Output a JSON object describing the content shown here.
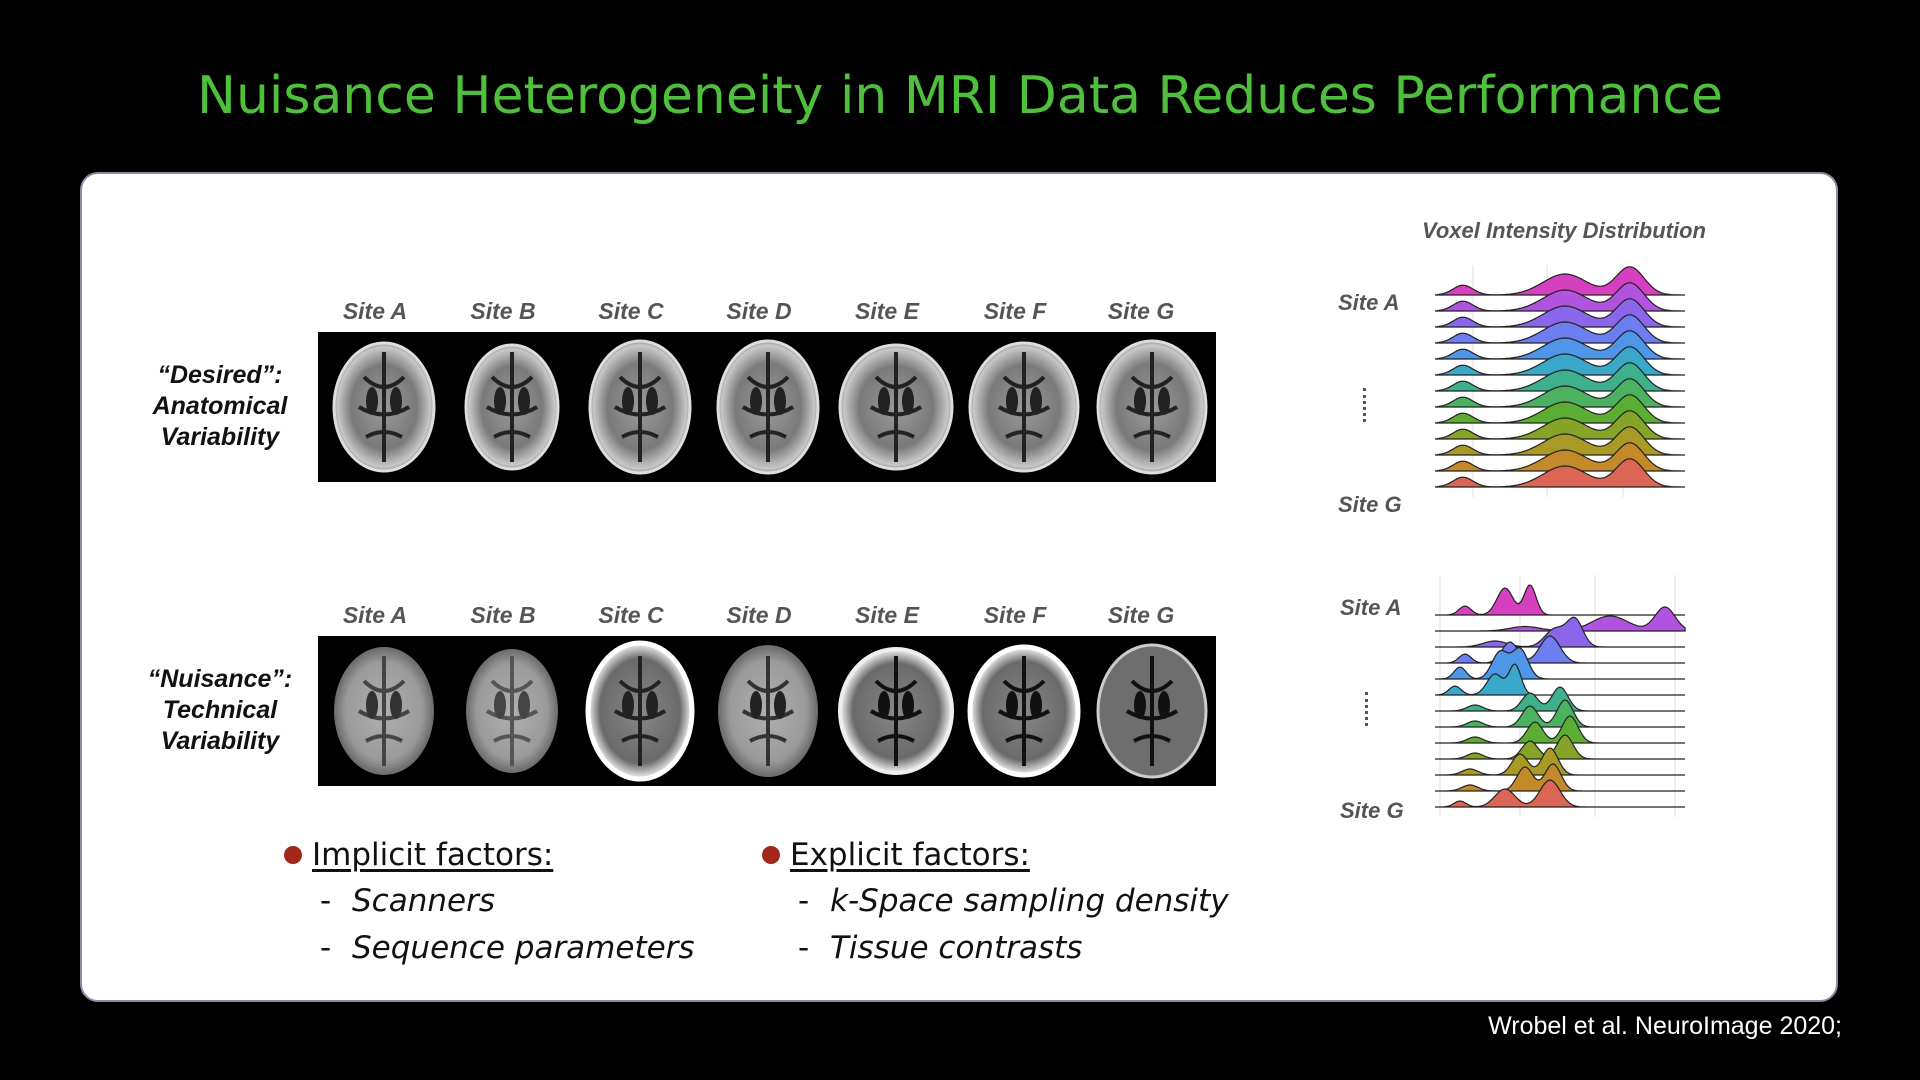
{
  "title": "Nuisance Heterogeneity in MRI Data Reduces Performance",
  "sites": [
    "Site A",
    "Site B",
    "Site C",
    "Site D",
    "Site E",
    "Site F",
    "Site G"
  ],
  "rows": [
    {
      "label_line1": "“Desired”:",
      "label_line2": "Anatomical",
      "label_line3": "Variability"
    },
    {
      "label_line1": "“Nuisance”:",
      "label_line2": "Technical",
      "label_line3": "Variability"
    }
  ],
  "implicit": {
    "heading": "Implicit factors:",
    "items": [
      "Scanners",
      "Sequence parameters"
    ]
  },
  "explicit": {
    "heading": "Explicit factors:",
    "items": [
      "k-Space sampling density",
      "Tissue contrasts"
    ]
  },
  "distribution": {
    "title": "Voxel Intensity Distribution",
    "top": {
      "first_label": "Site A",
      "last_label": "Site G"
    },
    "bottom": {
      "first_label": "Site A",
      "last_label": "Site G"
    },
    "colors": [
      "#d63fbf",
      "#b054e0",
      "#8a66ea",
      "#6d7ef0",
      "#4d96e8",
      "#3aa8c8",
      "#3fb08c",
      "#4cb262",
      "#5cad33",
      "#86a428",
      "#a89a25",
      "#c48a2a",
      "#dc6656"
    ]
  },
  "citation": "Wrobel et al. NeuroImage 2020;"
}
